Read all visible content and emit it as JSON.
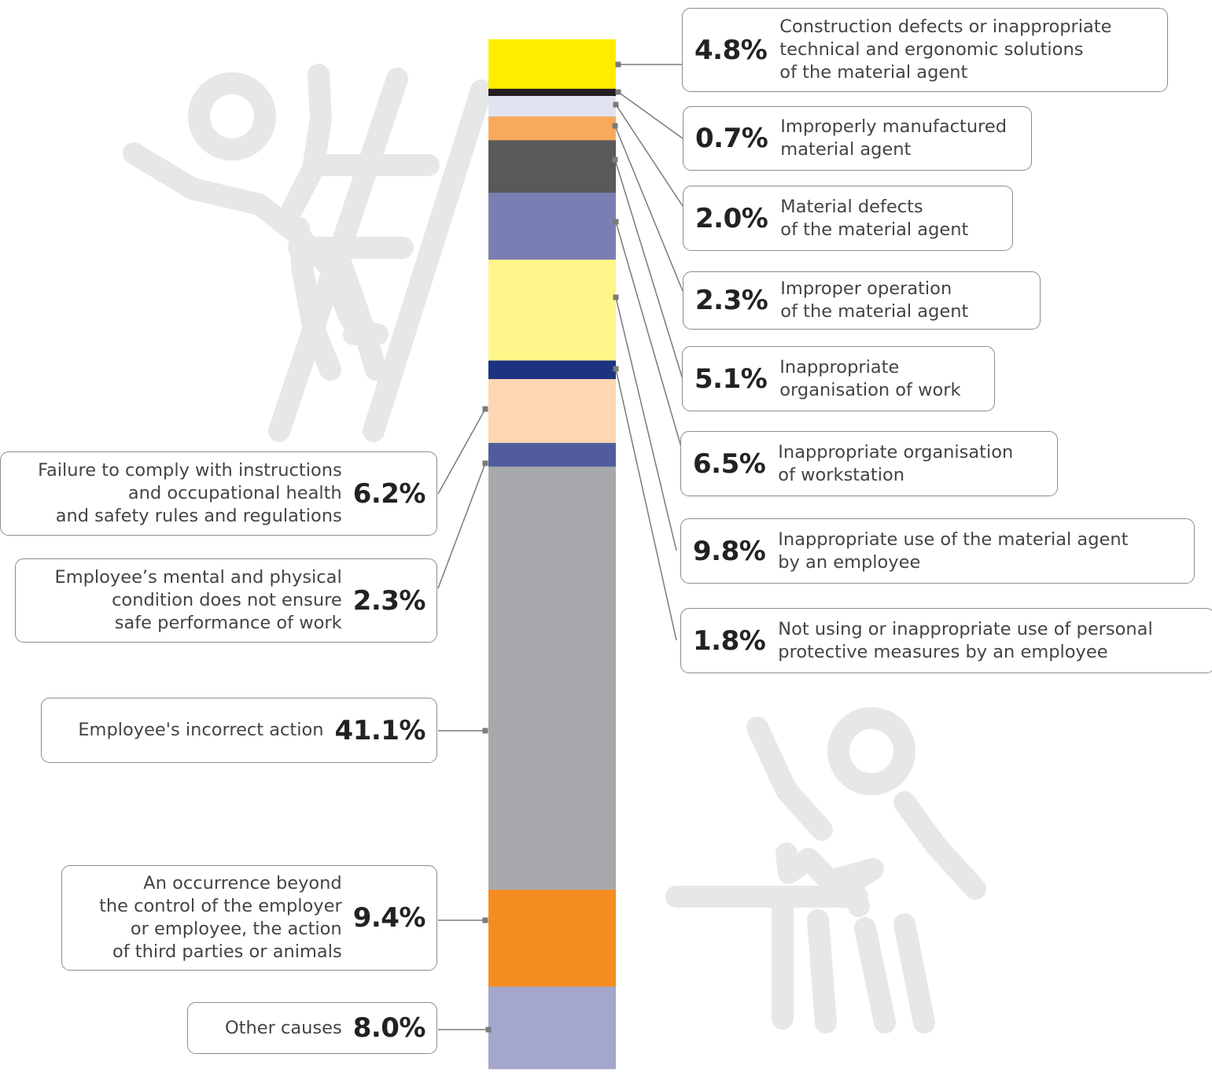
{
  "chart_data": {
    "type": "bar",
    "stacked": true,
    "orientation": "vertical",
    "unit": "%",
    "segments": [
      {
        "label": "Construction defects or inappropriate\ntechnical and ergonomic solutions\nof the material agent",
        "value": 4.8,
        "display": "4.8%",
        "color": "#FFED00",
        "side": "right"
      },
      {
        "label": "Improperly manufactured\nmaterial agent",
        "value": 0.7,
        "display": "0.7%",
        "color": "#231F20",
        "side": "right"
      },
      {
        "label": "Material defects\nof the material agent",
        "value": 2.0,
        "display": "2.0%",
        "color": "#E2E3F0",
        "side": "right"
      },
      {
        "label": "Improper operation\nof the material agent",
        "value": 2.3,
        "display": "2.3%",
        "color": "#F9A95B",
        "side": "right"
      },
      {
        "label": "Inappropriate\norganisation of work",
        "value": 5.1,
        "display": "5.1%",
        "color": "#58595B",
        "side": "right"
      },
      {
        "label": "Inappropriate organisation\nof workstation",
        "value": 6.5,
        "display": "6.5%",
        "color": "#7A7FB3",
        "side": "right"
      },
      {
        "label": "Inappropriate use of the material agent\nby an employee",
        "value": 9.8,
        "display": "9.8%",
        "color": "#FFF589",
        "side": "right"
      },
      {
        "label": "Not using or inappropriate use of personal\nprotective measures by an employee",
        "value": 1.8,
        "display": "1.8%",
        "color": "#1B3380",
        "side": "right"
      },
      {
        "label": "Failure to comply with instructions\nand occupational health\nand safety rules and regulations",
        "value": 6.2,
        "display": "6.2%",
        "color": "#FDD7B2",
        "side": "left"
      },
      {
        "label": "Employee’s mental and physical\ncondition does not ensure\nsafe performance of work",
        "value": 2.3,
        "display": "2.3%",
        "color": "#515C9E",
        "side": "left"
      },
      {
        "label": "Employee's incorrect action",
        "value": 41.1,
        "display": "41.1%",
        "color": "#A7A8AC",
        "side": "left"
      },
      {
        "label": "An occurrence beyond\nthe control of the employer\nor employee, the action\nof third parties or animals",
        "value": 9.4,
        "display": "9.4%",
        "color": "#F58C20",
        "side": "left"
      },
      {
        "label": "Other causes",
        "value": 8.0,
        "display": "8.0%",
        "color": "#A4A6CD",
        "side": "left"
      }
    ]
  },
  "decorations": {
    "icons": [
      "person-falling-ladder-icon",
      "person-injured-icon"
    ],
    "icon_color": "#E6E7E8",
    "leader_color": "#7a7a7a"
  }
}
